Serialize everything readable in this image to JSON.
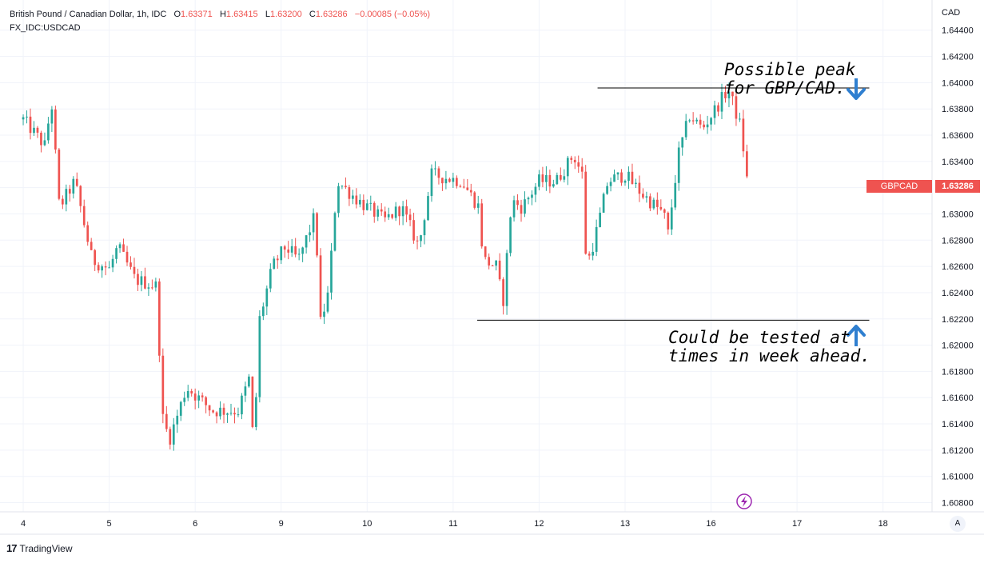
{
  "legend": {
    "title": "British Pound / Canadian Dollar, 1h, IDC",
    "open_label": "O",
    "open": "1.63371",
    "high_label": "H",
    "high": "1.63415",
    "low_label": "L",
    "low": "1.63200",
    "close_label": "C",
    "close": "1.63286",
    "change": "−0.00085 (−0.05%)",
    "comparison_symbol": "FX_IDC:USDCAD"
  },
  "annotations": {
    "peak_line1": "Possible peak",
    "peak_line2": "for GBP/CAD.",
    "support_line1": "Could be tested at",
    "support_line2": "times in week ahead."
  },
  "axis": {
    "currency": "CAD"
  },
  "price_badge": {
    "symbol": "GBPCAD",
    "value": "1.63286"
  },
  "footer": {
    "brand": "TradingView",
    "scale_button": "A"
  },
  "colors": {
    "up": "#26a69a",
    "down": "#ef5350",
    "arrow": "#2f7fd0",
    "grid": "#f0f3fa"
  },
  "chart_data": {
    "type": "candlestick",
    "y_tick_labels": [
      "1.64400",
      "1.64200",
      "1.64000",
      "1.63800",
      "1.63600",
      "1.63400",
      "1.63200",
      "1.63000",
      "1.62800",
      "1.62600",
      "1.62400",
      "1.62200",
      "1.62000",
      "1.61800",
      "1.61600",
      "1.61400",
      "1.61200",
      "1.61000",
      "1.60800"
    ],
    "y_ticks": [
      1.644,
      1.642,
      1.64,
      1.638,
      1.636,
      1.634,
      1.632,
      1.63,
      1.628,
      1.626,
      1.624,
      1.622,
      1.62,
      1.618,
      1.616,
      1.614,
      1.612,
      1.61,
      1.608
    ],
    "ylim": [
      1.6073,
      1.6463
    ],
    "x_tick_labels": [
      "4",
      "5",
      "6",
      "9",
      "10",
      "11",
      "12",
      "13",
      "16",
      "17",
      "18"
    ],
    "x_ticks_day_index": [
      0,
      1,
      2,
      3,
      4,
      5,
      6,
      7,
      8,
      9,
      10
    ],
    "xlim_day_index": [
      -0.27,
      10.57
    ],
    "day_index_of_last_candle": 8.45,
    "levels": [
      {
        "name": "resistance",
        "value": 1.6396,
        "from_day_index": 6.68,
        "to_day_index": 9.84
      },
      {
        "name": "support",
        "value": 1.6219,
        "from_day_index": 5.28,
        "to_day_index": 9.84
      }
    ],
    "path_points": [
      [
        0,
        1.6372
      ],
      [
        0.25,
        1.6352
      ],
      [
        0.33,
        1.6385
      ],
      [
        0.42,
        1.6305
      ],
      [
        0.6,
        1.6325
      ],
      [
        0.8,
        1.6265
      ],
      [
        1.0,
        1.6258
      ],
      [
        1.1,
        1.6275
      ],
      [
        1.3,
        1.625
      ],
      [
        1.55,
        1.6245
      ],
      [
        1.62,
        1.6145
      ],
      [
        1.7,
        1.6128
      ],
      [
        1.9,
        1.6168
      ],
      [
        2.2,
        1.615
      ],
      [
        2.5,
        1.615
      ],
      [
        2.63,
        1.6175
      ],
      [
        2.68,
        1.612
      ],
      [
        2.75,
        1.622
      ],
      [
        2.9,
        1.626
      ],
      [
        3.05,
        1.6275
      ],
      [
        3.2,
        1.6265
      ],
      [
        3.4,
        1.63
      ],
      [
        3.45,
        1.6215
      ],
      [
        3.55,
        1.624
      ],
      [
        3.65,
        1.6325
      ],
      [
        3.9,
        1.631
      ],
      [
        4.2,
        1.6295
      ],
      [
        4.4,
        1.6305
      ],
      [
        4.6,
        1.6275
      ],
      [
        4.75,
        1.633
      ],
      [
        5.1,
        1.6325
      ],
      [
        5.3,
        1.6305
      ],
      [
        5.35,
        1.6265
      ],
      [
        5.5,
        1.626
      ],
      [
        5.58,
        1.6232
      ],
      [
        5.68,
        1.631
      ],
      [
        5.8,
        1.6305
      ],
      [
        6.0,
        1.6325
      ],
      [
        6.2,
        1.6325
      ],
      [
        6.4,
        1.6345
      ],
      [
        6.5,
        1.633
      ],
      [
        6.55,
        1.626
      ],
      [
        6.62,
        1.6275
      ],
      [
        6.68,
        1.629
      ],
      [
        6.8,
        1.6325
      ],
      [
        7.0,
        1.633
      ],
      [
        7.2,
        1.6315
      ],
      [
        7.45,
        1.63
      ],
      [
        7.5,
        1.6285
      ],
      [
        7.62,
        1.6345
      ],
      [
        7.75,
        1.6375
      ],
      [
        7.9,
        1.6365
      ],
      [
        8.05,
        1.638
      ],
      [
        8.2,
        1.6395
      ],
      [
        8.35,
        1.6365
      ],
      [
        8.4,
        1.6335
      ],
      [
        8.45,
        1.63286
      ]
    ]
  }
}
